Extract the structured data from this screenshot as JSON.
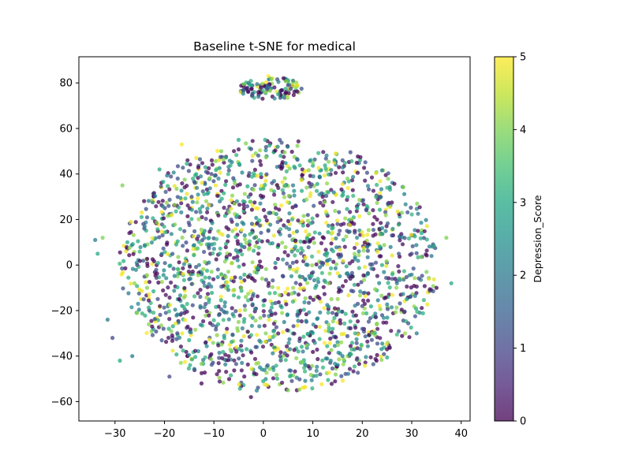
{
  "chart_data": {
    "type": "scatter",
    "title": "Baseline t-SNE for medical",
    "xlabel": "",
    "ylabel": "",
    "xlim": [
      -37.3,
      41.8
    ],
    "ylim": [
      -68.5,
      91.5
    ],
    "x_ticks": [
      -30,
      -20,
      -10,
      0,
      10,
      20,
      30,
      40
    ],
    "y_ticks": [
      -60,
      -40,
      -20,
      0,
      20,
      40,
      60,
      80
    ],
    "grid": false,
    "legend": "none",
    "point_alpha": 0.75,
    "colorbar": {
      "label": "Depression_Score",
      "colormap": "viridis",
      "range": [
        0,
        5
      ],
      "ticks": [
        0,
        1,
        2,
        3,
        4,
        5
      ],
      "stops": [
        "#440154",
        "#482475",
        "#414487",
        "#355f8d",
        "#2a788e",
        "#21918c",
        "#22a884",
        "#44bf70",
        "#7ad151",
        "#bddf26",
        "#fde725"
      ]
    },
    "clusters": [
      {
        "name": "upper",
        "center": [
          1.5,
          77.5
        ],
        "spread_x": 6.5,
        "spread_y": 5,
        "approx_points": 110
      },
      {
        "name": "main",
        "center": [
          3,
          0
        ],
        "spread_x": 33,
        "spread_y": 56,
        "approx_points": 1900
      }
    ],
    "points": [
      [
        -34,
        11,
        2
      ],
      [
        -33.5,
        5,
        3
      ],
      [
        -32.5,
        12,
        4
      ],
      [
        -31.5,
        -24,
        2
      ],
      [
        -30.5,
        -32,
        1
      ],
      [
        -29,
        -42,
        3
      ],
      [
        -28.5,
        35,
        4
      ],
      [
        -27.5,
        10,
        3
      ],
      [
        -26.5,
        -40,
        2
      ],
      [
        -25.5,
        0,
        1
      ],
      [
        -24,
        17,
        2
      ],
      [
        -23.5,
        -10,
        4
      ],
      [
        -22.5,
        -27,
        0
      ],
      [
        -21,
        42,
        3
      ],
      [
        -20.5,
        5,
        2
      ],
      [
        -19,
        -49,
        1
      ],
      [
        -18.5,
        22,
        5
      ],
      [
        -17,
        -15,
        0
      ],
      [
        -16.5,
        53,
        5
      ],
      [
        -15,
        -33,
        3
      ],
      [
        -14.5,
        30,
        1
      ],
      [
        -13,
        0,
        2
      ],
      [
        -12.5,
        -52,
        0
      ],
      [
        -11,
        12,
        3
      ],
      [
        -10.5,
        40,
        1
      ],
      [
        -9,
        -22,
        2
      ],
      [
        -8.5,
        50,
        4
      ],
      [
        -7,
        -40,
        0
      ],
      [
        -6.5,
        20,
        1
      ],
      [
        -5,
        55,
        3
      ],
      [
        -4.5,
        -10,
        4
      ],
      [
        -3,
        30,
        2
      ],
      [
        -2.5,
        -58,
        0
      ],
      [
        -1,
        5,
        0
      ],
      [
        -0.5,
        40,
        3
      ],
      [
        0.5,
        -30,
        4
      ],
      [
        1,
        15,
        1
      ],
      [
        2,
        -45,
        2
      ],
      [
        2.5,
        25,
        0
      ],
      [
        3.5,
        48,
        3
      ],
      [
        4,
        -5,
        1
      ],
      [
        5,
        -55,
        4
      ],
      [
        6,
        35,
        2
      ],
      [
        6.5,
        8,
        3
      ],
      [
        7.5,
        -20,
        0
      ],
      [
        8,
        -38,
        2
      ],
      [
        9,
        22,
        1
      ],
      [
        10,
        45,
        4
      ],
      [
        10.5,
        -10,
        3
      ],
      [
        11.5,
        -48,
        1
      ],
      [
        12,
        30,
        0
      ],
      [
        13,
        2,
        2
      ],
      [
        14,
        -28,
        3
      ],
      [
        15,
        18,
        1
      ],
      [
        16,
        -40,
        2
      ],
      [
        17,
        38,
        4
      ],
      [
        18,
        -5,
        0
      ],
      [
        19,
        25,
        3
      ],
      [
        20,
        -18,
        1
      ],
      [
        21,
        8,
        2
      ],
      [
        22,
        -30,
        4
      ],
      [
        23,
        20,
        0
      ],
      [
        24,
        0,
        3
      ],
      [
        25,
        -37,
        0
      ],
      [
        26,
        13,
        1
      ],
      [
        27,
        -8,
        2
      ],
      [
        28,
        23,
        4
      ],
      [
        29,
        -15,
        3
      ],
      [
        30,
        5,
        1
      ],
      [
        31,
        -30,
        2
      ],
      [
        32,
        14,
        3
      ],
      [
        33,
        -3,
        4
      ],
      [
        34,
        4,
        2
      ],
      [
        35,
        -10,
        0
      ],
      [
        37,
        12,
        4
      ],
      [
        38,
        -8,
        3
      ],
      [
        -3,
        80,
        2
      ],
      [
        -1,
        76,
        0
      ],
      [
        1,
        83,
        5
      ],
      [
        3,
        75,
        3
      ],
      [
        5,
        79,
        1
      ],
      [
        6,
        81,
        2
      ]
    ]
  }
}
